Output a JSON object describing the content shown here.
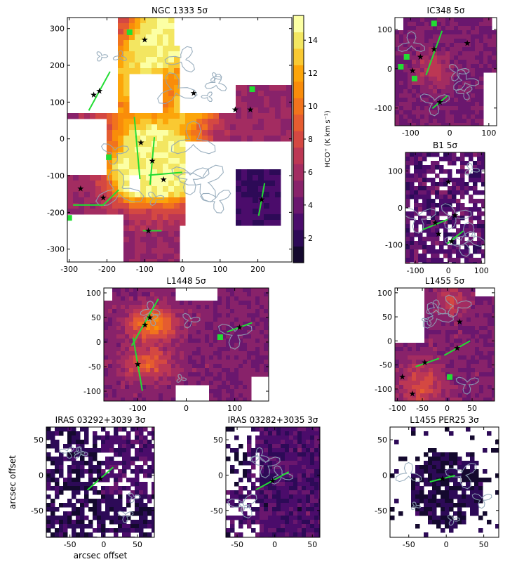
{
  "colorbar": {
    "label": "HCO⁺ (K km s⁻¹)",
    "ticks": [
      2,
      4,
      6,
      8,
      10,
      12,
      14
    ],
    "range": [
      0.5,
      15.5
    ],
    "colors": [
      "#14092e",
      "#2d0a57",
      "#4b0c6b",
      "#6a176e",
      "#88226a",
      "#a32c61",
      "#bc3754",
      "#d44842",
      "#e55c30",
      "#f1731d",
      "#f98c0a",
      "#fca50a",
      "#f9c932",
      "#f3e661",
      "#fcffa4"
    ]
  },
  "chart_data": [
    {
      "type": "heatmap",
      "title": "NGC 1333 5σ",
      "xlim": [
        -305,
        290
      ],
      "ylim": [
        -335,
        330
      ],
      "xticks": [
        -300,
        -200,
        -100,
        0,
        100,
        200
      ],
      "yticks": [
        -300,
        -200,
        -100,
        0,
        100,
        200,
        300
      ],
      "outflows": [
        {
          "cx": -220,
          "cy": 130,
          "len": 120,
          "ang": 62
        },
        {
          "cx": -120,
          "cy": -25,
          "len": 170,
          "ang": 95
        },
        {
          "cx": -80,
          "cy": -60,
          "len": 130,
          "ang": 85
        },
        {
          "cx": -45,
          "cy": -95,
          "len": 90,
          "ang": 5
        },
        {
          "cx": -250,
          "cy": -180,
          "len": 80,
          "ang": 0
        },
        {
          "cx": -190,
          "cy": -160,
          "len": 60,
          "ang": 45
        },
        {
          "cx": 210,
          "cy": -165,
          "len": 90,
          "ang": 80
        },
        {
          "cx": -80,
          "cy": -250,
          "len": 50,
          "ang": 0
        }
      ],
      "stars": [
        [
          -220,
          130
        ],
        [
          -235,
          120
        ],
        [
          -210,
          -160
        ],
        [
          -270,
          -135
        ],
        [
          -110,
          -10
        ],
        [
          -80,
          -60
        ],
        [
          30,
          125
        ],
        [
          140,
          80
        ],
        [
          180,
          80
        ],
        [
          -90,
          -250
        ],
        [
          210,
          -165
        ],
        [
          -100,
          270
        ],
        [
          -50,
          -110
        ]
      ],
      "squares": [
        [
          -140,
          290
        ],
        [
          -300,
          -215
        ],
        [
          -195,
          -50
        ],
        [
          185,
          135
        ]
      ]
    },
    {
      "type": "heatmap",
      "title": "IC348 5σ",
      "xlim": [
        -140,
        120
      ],
      "ylim": [
        -145,
        130
      ],
      "xticks": [
        -100,
        0,
        100
      ],
      "yticks": [
        -100,
        0,
        100
      ],
      "outflows": [
        {
          "cx": -40,
          "cy": 40,
          "len": 120,
          "ang": 70
        },
        {
          "cx": -25,
          "cy": -85,
          "len": 50,
          "ang": 40
        }
      ],
      "stars": [
        [
          -40,
          50
        ],
        [
          45,
          65
        ],
        [
          -95,
          -5
        ],
        [
          -25,
          -85
        ],
        [
          -75,
          30
        ]
      ],
      "squares": [
        [
          -40,
          115
        ],
        [
          -110,
          30
        ],
        [
          -125,
          5
        ],
        [
          -90,
          -25
        ]
      ]
    },
    {
      "type": "heatmap",
      "title": "B1 5σ",
      "xlim": [
        -130,
        110
      ],
      "ylim": [
        -150,
        150
      ],
      "xticks": [
        -100,
        0,
        100
      ],
      "yticks": [
        -100,
        0,
        100
      ],
      "outflows": [
        {
          "cx": -40,
          "cy": -45,
          "len": 80,
          "ang": 20
        },
        {
          "cx": 20,
          "cy": -80,
          "len": 60,
          "ang": 35
        }
      ],
      "stars": [
        [
          0,
          70
        ],
        [
          -40,
          -40
        ],
        [
          20,
          -20
        ],
        [
          -30,
          -70
        ],
        [
          10,
          -90
        ]
      ],
      "squares": []
    },
    {
      "type": "heatmap",
      "title": "L1448 5σ",
      "xlim": [
        -170,
        170
      ],
      "ylim": [
        -120,
        110
      ],
      "xticks": [
        -100,
        0,
        100
      ],
      "yticks": [
        -100,
        -50,
        0,
        50,
        100
      ],
      "outflows": [
        {
          "cx": -85,
          "cy": 40,
          "len": 110,
          "ang": 60
        },
        {
          "cx": -100,
          "cy": -45,
          "len": 110,
          "ang": 100
        },
        {
          "cx": 110,
          "cy": 30,
          "len": 55,
          "ang": 20
        }
      ],
      "stars": [
        [
          -75,
          50
        ],
        [
          -85,
          35
        ],
        [
          -100,
          -45
        ],
        [
          110,
          30
        ]
      ],
      "squares": [
        [
          70,
          10
        ]
      ]
    },
    {
      "type": "heatmap",
      "title": "L1455 5σ",
      "xlim": [
        -105,
        95
      ],
      "ylim": [
        -125,
        110
      ],
      "xticks": [
        -100,
        -50,
        0,
        50
      ],
      "yticks": [
        -100,
        -50,
        0,
        50,
        100
      ],
      "outflows": [
        {
          "cx": 20,
          "cy": -15,
          "len": 60,
          "ang": 30
        },
        {
          "cx": -40,
          "cy": -45,
          "len": 50,
          "ang": 20
        }
      ],
      "stars": [
        [
          25,
          40
        ],
        [
          20,
          -15
        ],
        [
          -45,
          -45
        ],
        [
          -90,
          -75
        ],
        [
          -70,
          -110
        ]
      ],
      "squares": [
        [
          5,
          -75
        ]
      ]
    },
    {
      "type": "heatmap",
      "title": "IRAS 03292+3039 3σ",
      "xlim": [
        -85,
        75
      ],
      "ylim": [
        -88,
        68
      ],
      "xticks": [
        -50,
        0,
        50
      ],
      "yticks": [
        -50,
        0,
        50
      ],
      "xlabel": "arcsec offset",
      "ylabel": "arcsec offset",
      "outflows": [
        {
          "cx": -5,
          "cy": -5,
          "len": 50,
          "ang": 40
        }
      ],
      "stars": [
        [
          -5,
          -5
        ]
      ],
      "squares": []
    },
    {
      "type": "heatmap",
      "title": "IRAS 03282+3035 3σ",
      "xlim": [
        -65,
        60
      ],
      "ylim": [
        -88,
        68
      ],
      "xticks": [
        -50,
        0,
        50
      ],
      "yticks": [
        -50,
        0,
        50
      ],
      "outflows": [
        {
          "cx": -3,
          "cy": -8,
          "len": 50,
          "ang": 30
        }
      ],
      "stars": [
        [
          -3,
          -8
        ]
      ],
      "squares": []
    },
    {
      "type": "heatmap",
      "title": "L1455 PER25 3σ",
      "xlim": [
        -75,
        70
      ],
      "ylim": [
        -88,
        68
      ],
      "xticks": [
        -50,
        0,
        50
      ],
      "yticks": [
        -50,
        0,
        50
      ],
      "outflows": [
        {
          "cx": -5,
          "cy": -5,
          "len": 35,
          "ang": 15
        }
      ],
      "stars": [
        [
          -5,
          -5
        ]
      ],
      "squares": []
    }
  ]
}
